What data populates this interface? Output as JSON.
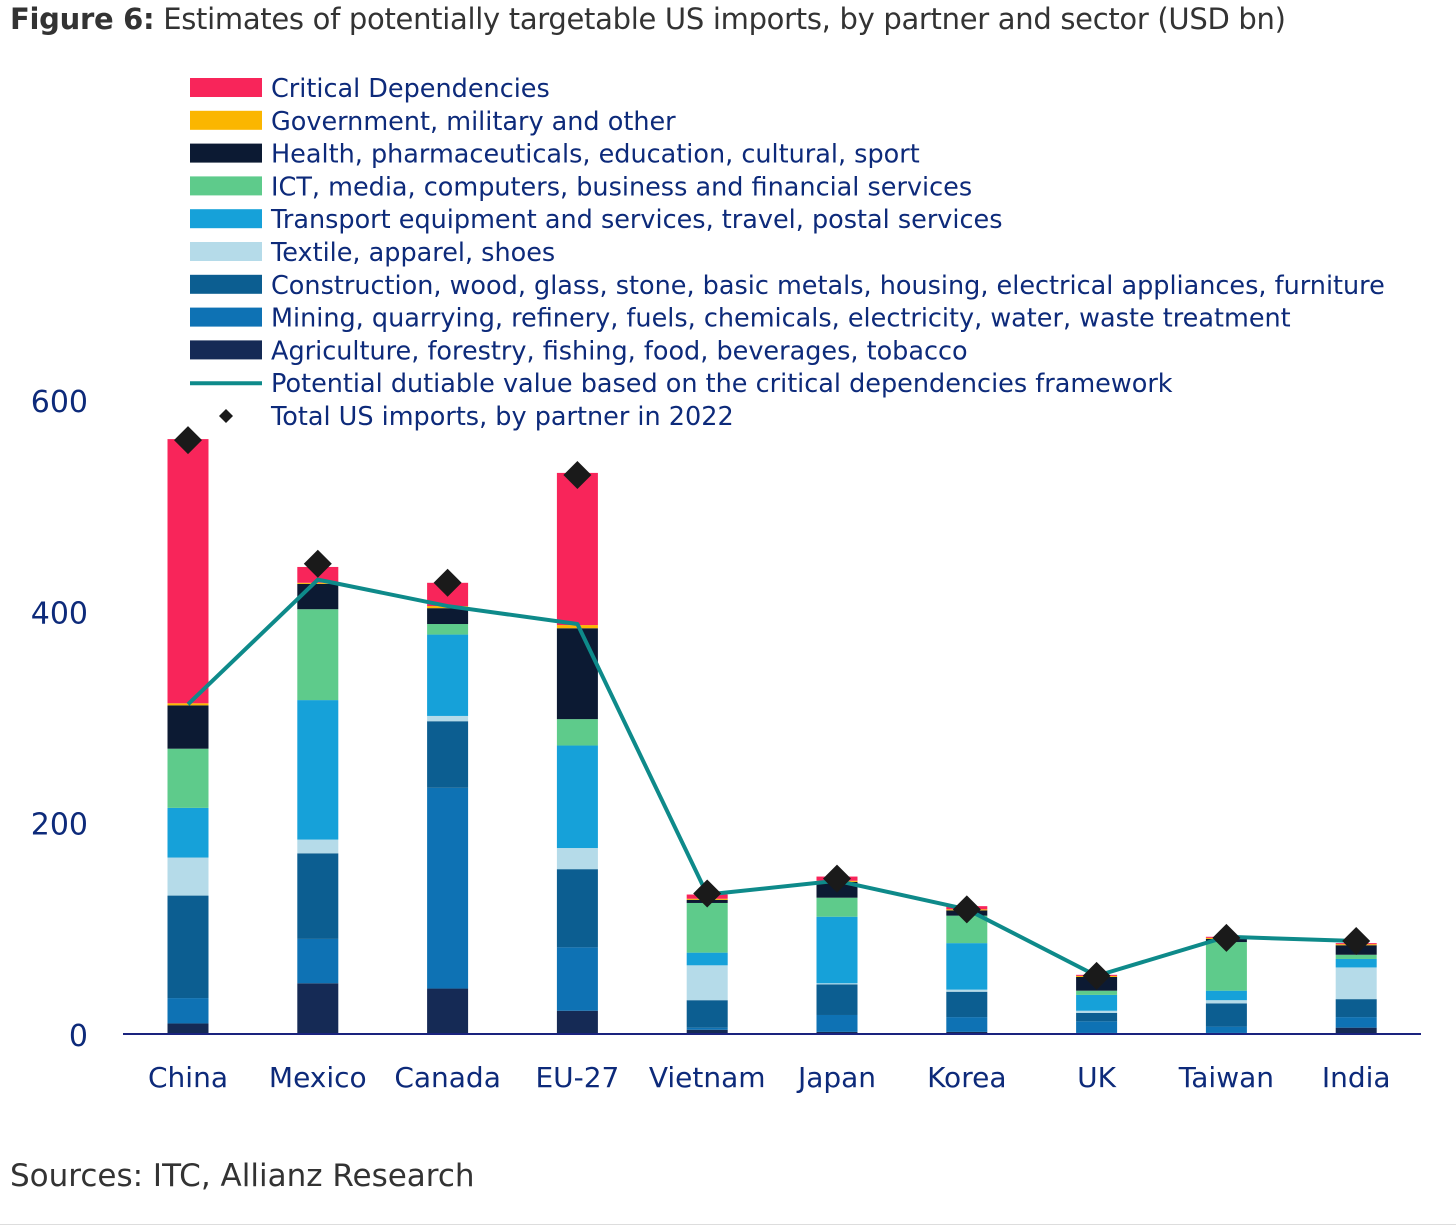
{
  "figure": {
    "label": "Figure 6:",
    "title": "Estimates of potentially targetable US imports, by partner and sector (USD bn)",
    "sources": "Sources: ITC, Allianz Research"
  },
  "chart_data": {
    "type": "bar",
    "stacked": true,
    "categories": [
      "China",
      "Mexico",
      "Canada",
      "EU-27",
      "Vietnam",
      "Japan",
      "Korea",
      "UK",
      "Taiwan",
      "India"
    ],
    "ylim": [
      0,
      600
    ],
    "yticks": [
      0,
      200,
      400,
      600
    ],
    "grid": false,
    "legend_position": "top",
    "series": [
      {
        "name": "Agriculture, forestry, fishing, food, beverages, tobacco",
        "color": "#152a55",
        "values": [
          10,
          48,
          43,
          22,
          4,
          2,
          2,
          1,
          1,
          6
        ]
      },
      {
        "name": "Mining, quarrying, refinery, fuels, chemicals, electricity, water, waste treatment",
        "color": "#0e72b4",
        "values": [
          24,
          42,
          190,
          60,
          2,
          16,
          14,
          11,
          6,
          10
        ]
      },
      {
        "name": "Construction, wood, glass, stone, basic metals, housing, electrical appliances, furniture",
        "color": "#0c5e91",
        "values": [
          97,
          81,
          63,
          74,
          26,
          29,
          24,
          8,
          22,
          17
        ]
      },
      {
        "name": "Textile, apparel, shoes",
        "color": "#b5dbe9",
        "values": [
          36,
          13,
          5,
          20,
          33,
          1,
          2,
          2,
          3,
          30
        ]
      },
      {
        "name": "Transport equipment and services, travel, postal services",
        "color": "#16a1d9",
        "values": [
          47,
          132,
          77,
          97,
          12,
          63,
          44,
          15,
          9,
          8
        ]
      },
      {
        "name": "ICT, media, computers, business and financial services",
        "color": "#5ecb8b",
        "values": [
          56,
          86,
          10,
          25,
          47,
          18,
          26,
          4,
          46,
          4
        ]
      },
      {
        "name": "Health, pharmaceuticals, education, cultural, sport",
        "color": "#0c1a33",
        "values": [
          41,
          24,
          15,
          86,
          3,
          15,
          5,
          13,
          3,
          9
        ]
      },
      {
        "name": "Government, military and other",
        "color": "#fbb600",
        "values": [
          2,
          1,
          2,
          3,
          1,
          1,
          1,
          1,
          1,
          1
        ]
      },
      {
        "name": "Critical Dependencies",
        "color": "#f8255a",
        "values": [
          250,
          15,
          22,
          144,
          4,
          4,
          3,
          1,
          1,
          1
        ]
      }
    ],
    "line": {
      "name": "Potential dutiable value based on the critical dependencies framework",
      "color": "#0e8a8a",
      "values": [
        312,
        430,
        405,
        388,
        132,
        145,
        118,
        55,
        92,
        88
      ]
    },
    "markers": {
      "name": "Total US imports, by partner in 2022",
      "color": "#1a1a1a",
      "values": [
        562,
        445,
        427,
        529,
        133,
        147,
        118,
        55,
        91,
        88
      ]
    },
    "legend_order": [
      "Critical Dependencies",
      "Government, military and other",
      "Health, pharmaceuticals, education, cultural, sport",
      "ICT, media, computers, business and financial services",
      "Transport equipment and services, travel, postal services",
      "Textile, apparel, shoes",
      "Construction, wood, glass, stone, basic metals, housing, electrical appliances, furniture",
      "Mining, quarrying, refinery, fuels, chemicals, electricity, water, waste treatment",
      "Agriculture, forestry, fishing, food, beverages, tobacco",
      "Potential dutiable value based on the critical dependencies framework",
      "Total US imports, by partner in 2022"
    ],
    "colors": {
      "axis": "#1a237e",
      "text": "#0d2a7a"
    }
  }
}
